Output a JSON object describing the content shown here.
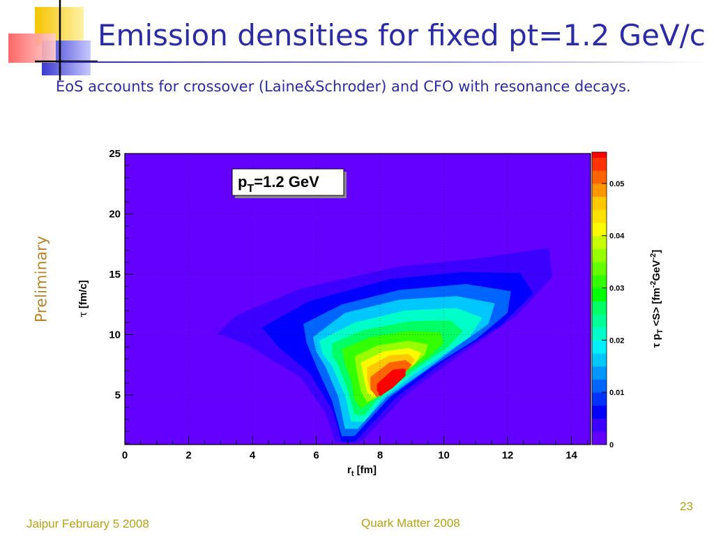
{
  "slide": {
    "title": "Emission densities for fixed pt=1.2 GeV/c",
    "subtitle": "EoS accounts for crossover (Laine&Schroder) and CFO with resonance decays.",
    "side_label": "Preliminary",
    "footer_left": "Jaipur February 5 2008",
    "footer_center": "Quark Matter 2008",
    "page_number": "23",
    "colors": {
      "title": "#2b2ba6",
      "footer": "#b5a10f",
      "side_label": "#b8862b"
    }
  },
  "chart_data": {
    "type": "heatmap",
    "plot_label": {
      "main": "p",
      "sub": "T",
      "rest": "=1.2 GeV"
    },
    "xlabel": {
      "main": "r",
      "sub": "t",
      "rest": " [fm]"
    },
    "ylabel": {
      "symbol": "τ",
      "rest": " [fm/c]"
    },
    "zlabel": {
      "pre": "τ p",
      "sub": "T",
      "mid": " <S> [fm",
      "sup1": "-2",
      "mid2": "GeV",
      "sup2": "-2",
      "post": "]"
    },
    "xlim": [
      0,
      14.6
    ],
    "ylim": [
      0.9,
      25
    ],
    "zlim": [
      0,
      0.056
    ],
    "x_ticks": [
      "0",
      "2",
      "4",
      "6",
      "8",
      "10",
      "12",
      "14"
    ],
    "y_ticks": [
      "5",
      "10",
      "15",
      "20",
      "25"
    ],
    "z_ticks": [
      "0",
      "0.01",
      "0.02",
      "0.03",
      "0.04",
      "0.05"
    ],
    "grid": true,
    "peak": {
      "r": 8.4,
      "tau": 6.0,
      "value": 0.055
    },
    "contour_levels": [
      {
        "level": 0.0025,
        "color": "#3c00ff",
        "outline": [
          [
            2.9,
            10.1
          ],
          [
            3.5,
            11.6
          ],
          [
            5.5,
            13.8
          ],
          [
            8.5,
            15.6
          ],
          [
            11.0,
            16.3
          ],
          [
            13.3,
            17.2
          ],
          [
            13.4,
            14.8
          ],
          [
            12.3,
            11.6
          ],
          [
            10.5,
            8.3
          ],
          [
            8.8,
            5.0
          ],
          [
            7.4,
            1.1
          ],
          [
            6.6,
            1.1
          ],
          [
            6.3,
            3.5
          ],
          [
            5.5,
            6.5
          ],
          [
            3.8,
            9.2
          ]
        ]
      },
      {
        "level": 0.005,
        "color": "#0000ff",
        "outline": [
          [
            4.3,
            10.6
          ],
          [
            5.8,
            12.8
          ],
          [
            8.3,
            14.6
          ],
          [
            10.6,
            15.2
          ],
          [
            12.4,
            15.1
          ],
          [
            12.8,
            13.4
          ],
          [
            11.8,
            10.8
          ],
          [
            10.0,
            7.8
          ],
          [
            8.5,
            4.8
          ],
          [
            7.2,
            1.1
          ],
          [
            6.8,
            1.1
          ],
          [
            6.5,
            3.8
          ],
          [
            5.8,
            6.8
          ],
          [
            4.8,
            9.0
          ]
        ]
      },
      {
        "level": 0.01,
        "color": "#0064ff",
        "outline": [
          [
            5.6,
            10.9
          ],
          [
            6.8,
            12.5
          ],
          [
            8.6,
            13.7
          ],
          [
            10.7,
            14.2
          ],
          [
            12.1,
            13.6
          ],
          [
            12.0,
            11.8
          ],
          [
            11.0,
            9.6
          ],
          [
            9.6,
            7.3
          ],
          [
            8.3,
            4.8
          ],
          [
            7.2,
            1.6
          ],
          [
            6.8,
            1.6
          ],
          [
            6.5,
            4.5
          ],
          [
            6.0,
            7.4
          ],
          [
            5.7,
            9.3
          ]
        ]
      },
      {
        "level": 0.015,
        "color": "#00c8ff",
        "outline": [
          [
            5.9,
            9.8
          ],
          [
            6.9,
            11.8
          ],
          [
            8.6,
            12.9
          ],
          [
            10.4,
            13.2
          ],
          [
            11.6,
            12.6
          ],
          [
            11.4,
            10.9
          ],
          [
            10.4,
            9.0
          ],
          [
            9.4,
            7.0
          ],
          [
            8.2,
            4.8
          ],
          [
            7.3,
            2.2
          ],
          [
            6.9,
            2.2
          ],
          [
            6.7,
            4.8
          ],
          [
            6.3,
            7.3
          ],
          [
            6.0,
            8.6
          ]
        ]
      },
      {
        "level": 0.02,
        "color": "#00ffc8",
        "outline": [
          [
            6.1,
            9.5
          ],
          [
            7.2,
            11.0
          ],
          [
            8.8,
            12.0
          ],
          [
            10.4,
            12.2
          ],
          [
            11.2,
            11.4
          ],
          [
            10.8,
            9.8
          ],
          [
            9.9,
            8.2
          ],
          [
            9.0,
            6.6
          ],
          [
            8.1,
            4.8
          ],
          [
            7.5,
            2.8
          ],
          [
            7.1,
            2.8
          ],
          [
            6.9,
            5.0
          ],
          [
            6.5,
            7.4
          ],
          [
            6.2,
            8.4
          ]
        ]
      },
      {
        "level": 0.025,
        "color": "#00ff64",
        "outline": [
          [
            6.5,
            9.3
          ],
          [
            7.5,
            10.4
          ],
          [
            8.9,
            11.1
          ],
          [
            10.2,
            11.2
          ],
          [
            10.6,
            10.3
          ],
          [
            10.1,
            8.9
          ],
          [
            9.3,
            7.5
          ],
          [
            8.6,
            6.1
          ],
          [
            7.9,
            4.6
          ],
          [
            7.5,
            3.3
          ],
          [
            7.2,
            3.4
          ],
          [
            7.0,
            5.3
          ],
          [
            6.7,
            7.4
          ],
          [
            6.5,
            8.3
          ]
        ]
      },
      {
        "level": 0.03,
        "color": "#32ff00",
        "outline": [
          [
            6.8,
            8.8
          ],
          [
            7.7,
            9.8
          ],
          [
            8.9,
            10.3
          ],
          [
            9.9,
            10.2
          ],
          [
            10.0,
            9.3
          ],
          [
            9.5,
            8.1
          ],
          [
            8.8,
            6.9
          ],
          [
            8.2,
            5.6
          ],
          [
            7.7,
            4.4
          ],
          [
            7.4,
            3.9
          ],
          [
            7.2,
            4.6
          ],
          [
            7.1,
            6.2
          ],
          [
            6.9,
            7.6
          ]
        ]
      },
      {
        "level": 0.035,
        "color": "#96ff00",
        "outline": [
          [
            7.2,
            8.2
          ],
          [
            7.9,
            9.1
          ],
          [
            8.9,
            9.5
          ],
          [
            9.5,
            9.2
          ],
          [
            9.4,
            8.3
          ],
          [
            8.9,
            7.2
          ],
          [
            8.3,
            6.0
          ],
          [
            7.9,
            4.8
          ],
          [
            7.6,
            4.4
          ],
          [
            7.4,
            5.3
          ],
          [
            7.3,
            6.6
          ]
        ]
      },
      {
        "level": 0.04,
        "color": "#fafa00",
        "outline": [
          [
            7.4,
            7.7
          ],
          [
            8.1,
            8.6
          ],
          [
            8.9,
            8.9
          ],
          [
            9.3,
            8.5
          ],
          [
            9.1,
            7.6
          ],
          [
            8.6,
            6.6
          ],
          [
            8.1,
            5.5
          ],
          [
            7.8,
            4.8
          ],
          [
            7.6,
            5.2
          ],
          [
            7.5,
            6.3
          ]
        ]
      },
      {
        "level": 0.045,
        "color": "#ffc800",
        "outline": [
          [
            7.6,
            7.3
          ],
          [
            8.3,
            8.3
          ],
          [
            8.9,
            8.4
          ],
          [
            9.1,
            7.9
          ],
          [
            8.8,
            7.0
          ],
          [
            8.3,
            6.0
          ],
          [
            7.9,
            4.9
          ],
          [
            7.7,
            5.4
          ],
          [
            7.6,
            6.3
          ]
        ]
      },
      {
        "level": 0.05,
        "color": "#ff6400",
        "outline": [
          [
            7.7,
            6.5
          ],
          [
            8.3,
            7.7
          ],
          [
            8.8,
            7.9
          ],
          [
            9.0,
            7.5
          ],
          [
            8.7,
            6.6
          ],
          [
            8.2,
            5.4
          ],
          [
            7.9,
            4.8
          ],
          [
            7.7,
            5.5
          ]
        ]
      },
      {
        "level": 0.055,
        "color": "#ff0000",
        "outline": [
          [
            7.9,
            5.9
          ],
          [
            8.4,
            7.1
          ],
          [
            8.8,
            7.2
          ],
          [
            8.8,
            6.6
          ],
          [
            8.4,
            5.6
          ],
          [
            8.0,
            4.9
          ],
          [
            7.9,
            5.4
          ]
        ]
      }
    ],
    "colorbar": [
      {
        "from": 0.0,
        "to": 0.0025,
        "color": "#6400ff"
      },
      {
        "from": 0.0025,
        "to": 0.005,
        "color": "#3c00ff"
      },
      {
        "from": 0.005,
        "to": 0.0075,
        "color": "#0000ff"
      },
      {
        "from": 0.0075,
        "to": 0.01,
        "color": "#0032ff"
      },
      {
        "from": 0.01,
        "to": 0.0125,
        "color": "#0064ff"
      },
      {
        "from": 0.0125,
        "to": 0.015,
        "color": "#0096ff"
      },
      {
        "from": 0.015,
        "to": 0.0175,
        "color": "#00c8ff"
      },
      {
        "from": 0.0175,
        "to": 0.02,
        "color": "#00f0ff"
      },
      {
        "from": 0.02,
        "to": 0.0225,
        "color": "#00ffc8"
      },
      {
        "from": 0.0225,
        "to": 0.025,
        "color": "#00ff96"
      },
      {
        "from": 0.025,
        "to": 0.0275,
        "color": "#00ff64"
      },
      {
        "from": 0.0275,
        "to": 0.03,
        "color": "#00ff00"
      },
      {
        "from": 0.03,
        "to": 0.0325,
        "color": "#32ff00"
      },
      {
        "from": 0.0325,
        "to": 0.035,
        "color": "#64ff00"
      },
      {
        "from": 0.035,
        "to": 0.0375,
        "color": "#96ff00"
      },
      {
        "from": 0.0375,
        "to": 0.04,
        "color": "#c8ff00"
      },
      {
        "from": 0.04,
        "to": 0.0425,
        "color": "#fafa00"
      },
      {
        "from": 0.0425,
        "to": 0.045,
        "color": "#ffe100"
      },
      {
        "from": 0.045,
        "to": 0.0475,
        "color": "#ffc800"
      },
      {
        "from": 0.0475,
        "to": 0.05,
        "color": "#ff9600"
      },
      {
        "from": 0.05,
        "to": 0.0525,
        "color": "#ff6400"
      },
      {
        "from": 0.0525,
        "to": 0.055,
        "color": "#ff3200"
      },
      {
        "from": 0.055,
        "to": 0.056,
        "color": "#ff0000"
      }
    ]
  }
}
